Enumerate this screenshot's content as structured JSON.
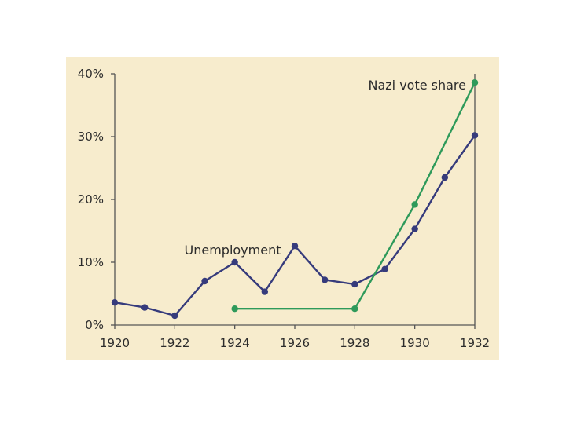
{
  "chart_data": {
    "type": "line",
    "title": "",
    "xlabel": "",
    "ylabel": "",
    "xlim": [
      1920,
      1932
    ],
    "ylim": [
      0,
      40
    ],
    "x_ticks": [
      "1920",
      "1922",
      "1924",
      "1926",
      "1928",
      "1930",
      "1932"
    ],
    "y_ticks": [
      "0%",
      "10%",
      "20%",
      "30%",
      "40%"
    ],
    "grid": false,
    "legend": "none",
    "series": [
      {
        "name": "Unemployment",
        "color": "#363b7c",
        "points": [
          {
            "x": 1920,
            "y": 3.6
          },
          {
            "x": 1921,
            "y": 2.8
          },
          {
            "x": 1922,
            "y": 1.5
          },
          {
            "x": 1923,
            "y": 7.0
          },
          {
            "x": 1924,
            "y": 10.0
          },
          {
            "x": 1925,
            "y": 5.3
          },
          {
            "x": 1926,
            "y": 12.6
          },
          {
            "x": 1927,
            "y": 7.2
          },
          {
            "x": 1928,
            "y": 6.5
          },
          {
            "x": 1929,
            "y": 8.9
          },
          {
            "x": 1930,
            "y": 15.3
          },
          {
            "x": 1931,
            "y": 23.5
          },
          {
            "x": 1932,
            "y": 30.2
          }
        ]
      },
      {
        "name": "Nazi vote share",
        "color": "#2e9a5a",
        "points": [
          {
            "x": 1924,
            "y": 2.6
          },
          {
            "x": 1928,
            "y": 2.6
          },
          {
            "x": 1930,
            "y": 19.2
          },
          {
            "x": 1932,
            "y": 38.6
          }
        ]
      }
    ]
  }
}
